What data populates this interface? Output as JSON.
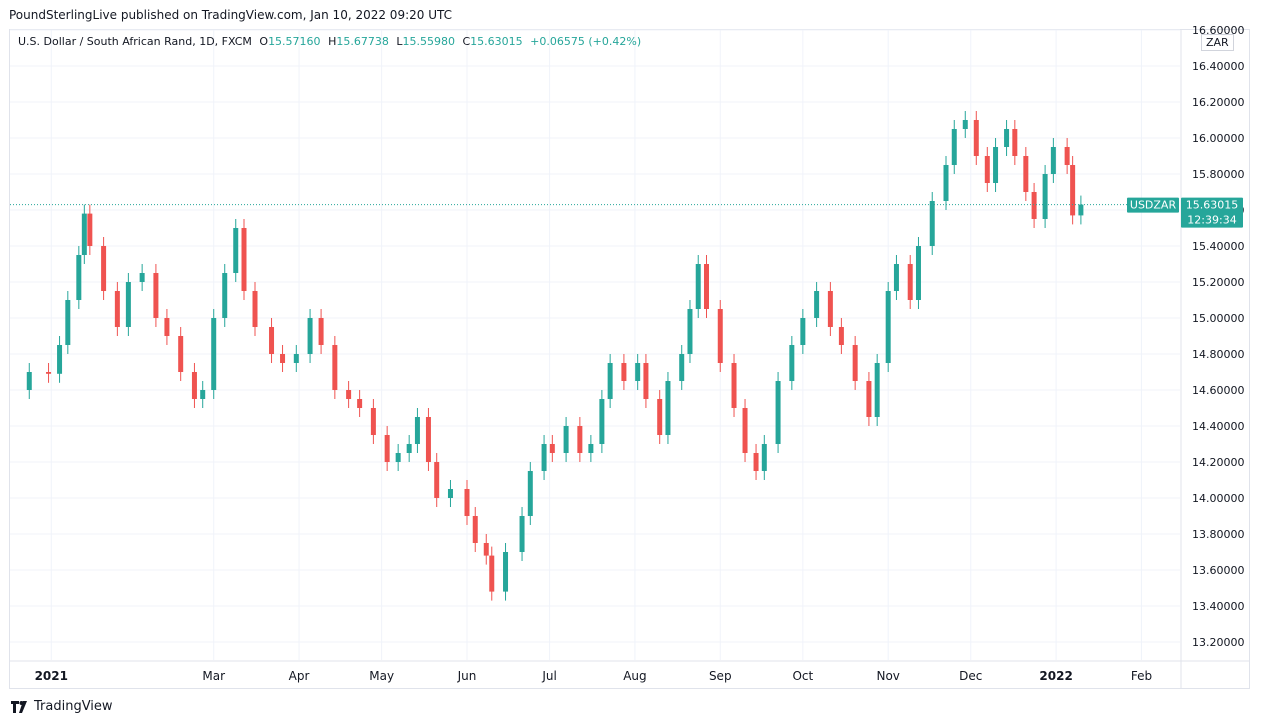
{
  "header": {
    "published": "PoundSterlingLive published on TradingView.com, Jan 10, 2022 09:20 UTC"
  },
  "legend": {
    "symbol": "U.S. Dollar / South African Rand, 1D, FXCM",
    "o_label": "O",
    "o_value": "15.57160",
    "h_label": "H",
    "h_value": "15.67738",
    "l_label": "L",
    "l_value": "15.55980",
    "c_label": "C",
    "c_value": "15.63015",
    "change": "+0.06575 (+0.42%)"
  },
  "currency_badge": "ZAR",
  "price_tag": {
    "symbol": "USDZAR",
    "price": "15.63015",
    "countdown": "12:39:34"
  },
  "footer": {
    "brand": "TradingView"
  },
  "colors": {
    "up": "#26a69a",
    "down": "#ef5350",
    "grid": "#f0f3fa",
    "last_line": "#26a69a",
    "tag": "#26a69a"
  },
  "chart_data": {
    "type": "candlestick",
    "y_axis": {
      "min": 13.1,
      "max": 16.6,
      "ticks": [
        "13.20000",
        "13.40000",
        "13.60000",
        "13.80000",
        "14.00000",
        "14.20000",
        "14.40000",
        "14.60000",
        "14.80000",
        "15.00000",
        "15.20000",
        "15.40000",
        "15.60000",
        "15.80000",
        "16.00000",
        "16.20000",
        "16.40000",
        "16.60000"
      ]
    },
    "x_axis": {
      "start": "2020-12-17",
      "end": "2022-02-15",
      "labels": [
        {
          "date": "2021-01-01",
          "text": "2021",
          "bold": true
        },
        {
          "date": "2021-03-01",
          "text": "Mar"
        },
        {
          "date": "2021-04-01",
          "text": "Apr"
        },
        {
          "date": "2021-05-01",
          "text": "May"
        },
        {
          "date": "2021-06-01",
          "text": "Jun"
        },
        {
          "date": "2021-07-01",
          "text": "Jul"
        },
        {
          "date": "2021-08-01",
          "text": "Aug"
        },
        {
          "date": "2021-09-01",
          "text": "Sep"
        },
        {
          "date": "2021-10-01",
          "text": "Oct"
        },
        {
          "date": "2021-11-01",
          "text": "Nov"
        },
        {
          "date": "2021-12-01",
          "text": "Dec"
        },
        {
          "date": "2022-01-01",
          "text": "2022",
          "bold": true
        },
        {
          "date": "2022-02-01",
          "text": "Feb"
        }
      ]
    },
    "last_close": 15.63015,
    "grid": true,
    "series": [
      {
        "date": "2020-12-17",
        "close": 14.6
      },
      {
        "date": "2020-12-24",
        "close": 14.7
      },
      {
        "date": "2020-12-31",
        "close": 14.69
      },
      {
        "date": "2021-01-04",
        "close": 14.85
      },
      {
        "date": "2021-01-07",
        "close": 15.1
      },
      {
        "date": "2021-01-11",
        "close": 15.35
      },
      {
        "date": "2021-01-13",
        "close": 15.58
      },
      {
        "date": "2021-01-15",
        "close": 15.4
      },
      {
        "date": "2021-01-20",
        "close": 15.15
      },
      {
        "date": "2021-01-25",
        "close": 14.95
      },
      {
        "date": "2021-01-29",
        "close": 15.2
      },
      {
        "date": "2021-02-03",
        "close": 15.25
      },
      {
        "date": "2021-02-08",
        "close": 15.0
      },
      {
        "date": "2021-02-12",
        "close": 14.9
      },
      {
        "date": "2021-02-17",
        "close": 14.7
      },
      {
        "date": "2021-02-22",
        "close": 14.55
      },
      {
        "date": "2021-02-25",
        "close": 14.6
      },
      {
        "date": "2021-03-01",
        "close": 15.0
      },
      {
        "date": "2021-03-05",
        "close": 15.25
      },
      {
        "date": "2021-03-09",
        "close": 15.5
      },
      {
        "date": "2021-03-12",
        "close": 15.15
      },
      {
        "date": "2021-03-16",
        "close": 14.95
      },
      {
        "date": "2021-03-22",
        "close": 14.8
      },
      {
        "date": "2021-03-26",
        "close": 14.75
      },
      {
        "date": "2021-03-31",
        "close": 14.8
      },
      {
        "date": "2021-04-05",
        "close": 15.0
      },
      {
        "date": "2021-04-09",
        "close": 14.85
      },
      {
        "date": "2021-04-14",
        "close": 14.6
      },
      {
        "date": "2021-04-19",
        "close": 14.55
      },
      {
        "date": "2021-04-23",
        "close": 14.5
      },
      {
        "date": "2021-04-28",
        "close": 14.35
      },
      {
        "date": "2021-05-03",
        "close": 14.2
      },
      {
        "date": "2021-05-07",
        "close": 14.25
      },
      {
        "date": "2021-05-11",
        "close": 14.3
      },
      {
        "date": "2021-05-14",
        "close": 14.45
      },
      {
        "date": "2021-05-18",
        "close": 14.2
      },
      {
        "date": "2021-05-21",
        "close": 14.0
      },
      {
        "date": "2021-05-26",
        "close": 14.05
      },
      {
        "date": "2021-06-01",
        "close": 13.9
      },
      {
        "date": "2021-06-04",
        "close": 13.75
      },
      {
        "date": "2021-06-08",
        "close": 13.68
      },
      {
        "date": "2021-06-10",
        "close": 13.48
      },
      {
        "date": "2021-06-15",
        "close": 13.7
      },
      {
        "date": "2021-06-21",
        "close": 13.9
      },
      {
        "date": "2021-06-24",
        "close": 14.15
      },
      {
        "date": "2021-06-29",
        "close": 14.3
      },
      {
        "date": "2021-07-02",
        "close": 14.25
      },
      {
        "date": "2021-07-07",
        "close": 14.4
      },
      {
        "date": "2021-07-12",
        "close": 14.25
      },
      {
        "date": "2021-07-16",
        "close": 14.3
      },
      {
        "date": "2021-07-20",
        "close": 14.55
      },
      {
        "date": "2021-07-23",
        "close": 14.75
      },
      {
        "date": "2021-07-28",
        "close": 14.65
      },
      {
        "date": "2021-08-02",
        "close": 14.75
      },
      {
        "date": "2021-08-05",
        "close": 14.55
      },
      {
        "date": "2021-08-10",
        "close": 14.35
      },
      {
        "date": "2021-08-13",
        "close": 14.65
      },
      {
        "date": "2021-08-18",
        "close": 14.8
      },
      {
        "date": "2021-08-21",
        "close": 15.05
      },
      {
        "date": "2021-08-24",
        "close": 15.3
      },
      {
        "date": "2021-08-27",
        "close": 15.05
      },
      {
        "date": "2021-09-01",
        "close": 14.75
      },
      {
        "date": "2021-09-06",
        "close": 14.5
      },
      {
        "date": "2021-09-10",
        "close": 14.25
      },
      {
        "date": "2021-09-14",
        "close": 14.15
      },
      {
        "date": "2021-09-17",
        "close": 14.3
      },
      {
        "date": "2021-09-22",
        "close": 14.65
      },
      {
        "date": "2021-09-27",
        "close": 14.85
      },
      {
        "date": "2021-10-01",
        "close": 15.0
      },
      {
        "date": "2021-10-06",
        "close": 15.15
      },
      {
        "date": "2021-10-11",
        "close": 14.95
      },
      {
        "date": "2021-10-15",
        "close": 14.85
      },
      {
        "date": "2021-10-20",
        "close": 14.65
      },
      {
        "date": "2021-10-25",
        "close": 14.45
      },
      {
        "date": "2021-10-28",
        "close": 14.75
      },
      {
        "date": "2021-11-01",
        "close": 15.15
      },
      {
        "date": "2021-11-04",
        "close": 15.3
      },
      {
        "date": "2021-11-09",
        "close": 15.1
      },
      {
        "date": "2021-11-12",
        "close": 15.4
      },
      {
        "date": "2021-11-17",
        "close": 15.65
      },
      {
        "date": "2021-11-22",
        "close": 15.85
      },
      {
        "date": "2021-11-25",
        "close": 16.05
      },
      {
        "date": "2021-11-29",
        "close": 16.1
      },
      {
        "date": "2021-12-03",
        "close": 15.9
      },
      {
        "date": "2021-12-07",
        "close": 15.75
      },
      {
        "date": "2021-12-10",
        "close": 15.95
      },
      {
        "date": "2021-12-14",
        "close": 16.05
      },
      {
        "date": "2021-12-17",
        "close": 15.9
      },
      {
        "date": "2021-12-21",
        "close": 15.7
      },
      {
        "date": "2021-12-24",
        "close": 15.55
      },
      {
        "date": "2021-12-28",
        "close": 15.8
      },
      {
        "date": "2021-12-31",
        "close": 15.95
      },
      {
        "date": "2022-01-05",
        "close": 15.85
      },
      {
        "date": "2022-01-07",
        "close": 15.57
      },
      {
        "date": "2022-01-10",
        "close": 15.63015
      }
    ]
  }
}
